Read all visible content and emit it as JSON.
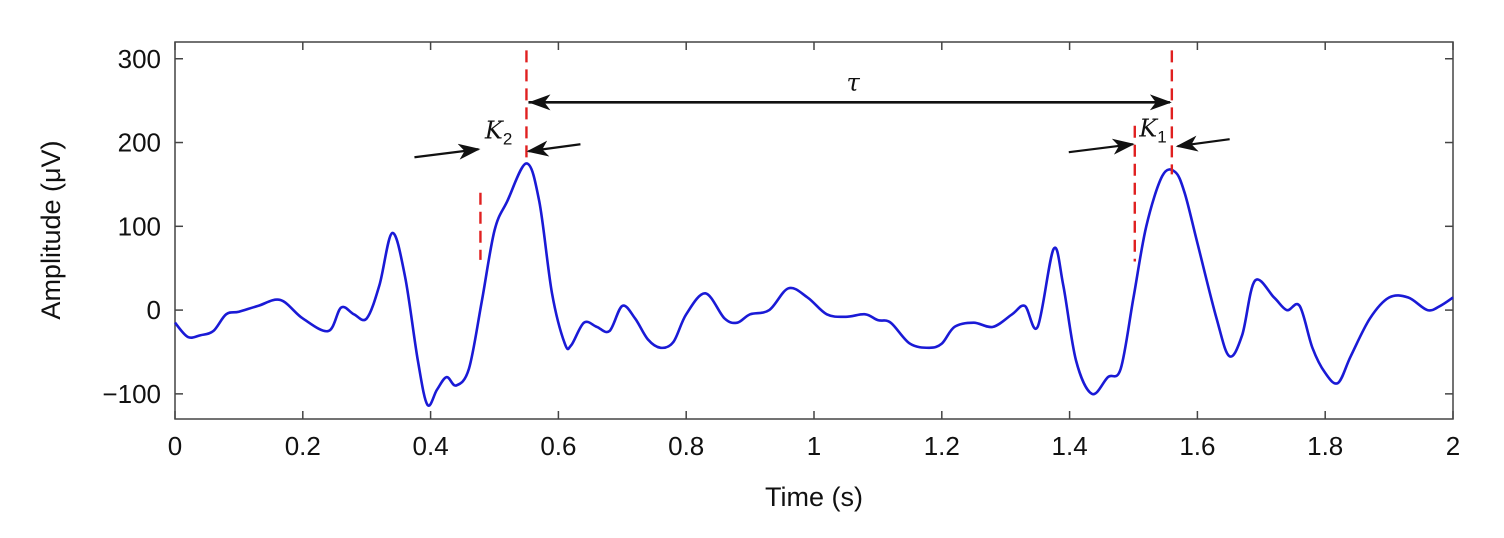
{
  "chart_data": {
    "type": "line",
    "xlabel": "Time (s)",
    "ylabel": "Amplitude (μV)",
    "xlim": [
      0,
      2
    ],
    "ylim": [
      -130,
      320
    ],
    "xticks": [
      0,
      0.2,
      0.4,
      0.6,
      0.8,
      1,
      1.2,
      1.4,
      1.6,
      1.8,
      2
    ],
    "xtick_labels": [
      "0",
      "0.2",
      "0.4",
      "0.6",
      "0.8",
      "1",
      "1.2",
      "1.4",
      "1.6",
      "1.8",
      "2"
    ],
    "yticks": [
      -100,
      0,
      100,
      200,
      300
    ],
    "ytick_labels": [
      "−100",
      "0",
      "100",
      "200",
      "300"
    ],
    "grid": false,
    "line_color": "#1a1ad6",
    "marker_color": "#e02020",
    "series": [
      {
        "x": [
          0,
          0.02,
          0.04,
          0.06,
          0.08,
          0.1,
          0.13,
          0.165,
          0.2,
          0.24,
          0.26,
          0.28,
          0.3,
          0.32,
          0.34,
          0.36,
          0.38,
          0.395,
          0.41,
          0.425,
          0.44,
          0.46,
          0.48,
          0.5,
          0.52,
          0.55,
          0.57,
          0.59,
          0.61,
          0.62,
          0.64,
          0.66,
          0.68,
          0.7,
          0.72,
          0.74,
          0.76,
          0.78,
          0.8,
          0.83,
          0.86,
          0.88,
          0.9,
          0.93,
          0.96,
          0.99,
          1.02,
          1.05,
          1.08,
          1.1,
          1.12,
          1.15,
          1.18,
          1.2,
          1.22,
          1.25,
          1.28,
          1.31,
          1.33,
          1.35,
          1.375,
          1.39,
          1.41,
          1.435,
          1.46,
          1.48,
          1.5,
          1.52,
          1.545,
          1.565,
          1.58,
          1.6,
          1.63,
          1.65,
          1.67,
          1.69,
          1.72,
          1.74,
          1.76,
          1.78,
          1.8,
          1.82,
          1.84,
          1.87,
          1.9,
          1.93,
          1.96,
          1.98,
          2
        ],
        "y": [
          -15,
          -32,
          -30,
          -25,
          -5,
          -2,
          5,
          12,
          -10,
          -25,
          3,
          -5,
          -10,
          30,
          92,
          40,
          -60,
          -113,
          -95,
          -80,
          -90,
          -70,
          10,
          95,
          130,
          175,
          130,
          20,
          -40,
          -42,
          -15,
          -20,
          -25,
          5,
          -10,
          -35,
          -45,
          -38,
          -5,
          20,
          -10,
          -15,
          -5,
          0,
          26,
          15,
          -5,
          -8,
          -5,
          -12,
          -15,
          -40,
          -45,
          -40,
          -20,
          -15,
          -20,
          -5,
          5,
          -20,
          73,
          30,
          -60,
          -100,
          -80,
          -70,
          15,
          100,
          160,
          165,
          140,
          80,
          -10,
          -55,
          -30,
          35,
          15,
          0,
          5,
          -45,
          -75,
          -87,
          -55,
          -10,
          15,
          15,
          0,
          5,
          15
        ]
      }
    ],
    "annotations": {
      "tau": {
        "label": "τ",
        "x_start": 0.55,
        "x_end": 1.56,
        "y": 248
      },
      "k2": {
        "label": "K",
        "sub": "2",
        "x_left": 0.478,
        "x_right": 0.55
      },
      "k1": {
        "label": "K",
        "sub": "1",
        "x_left": 1.502,
        "x_right": 1.566
      }
    }
  }
}
